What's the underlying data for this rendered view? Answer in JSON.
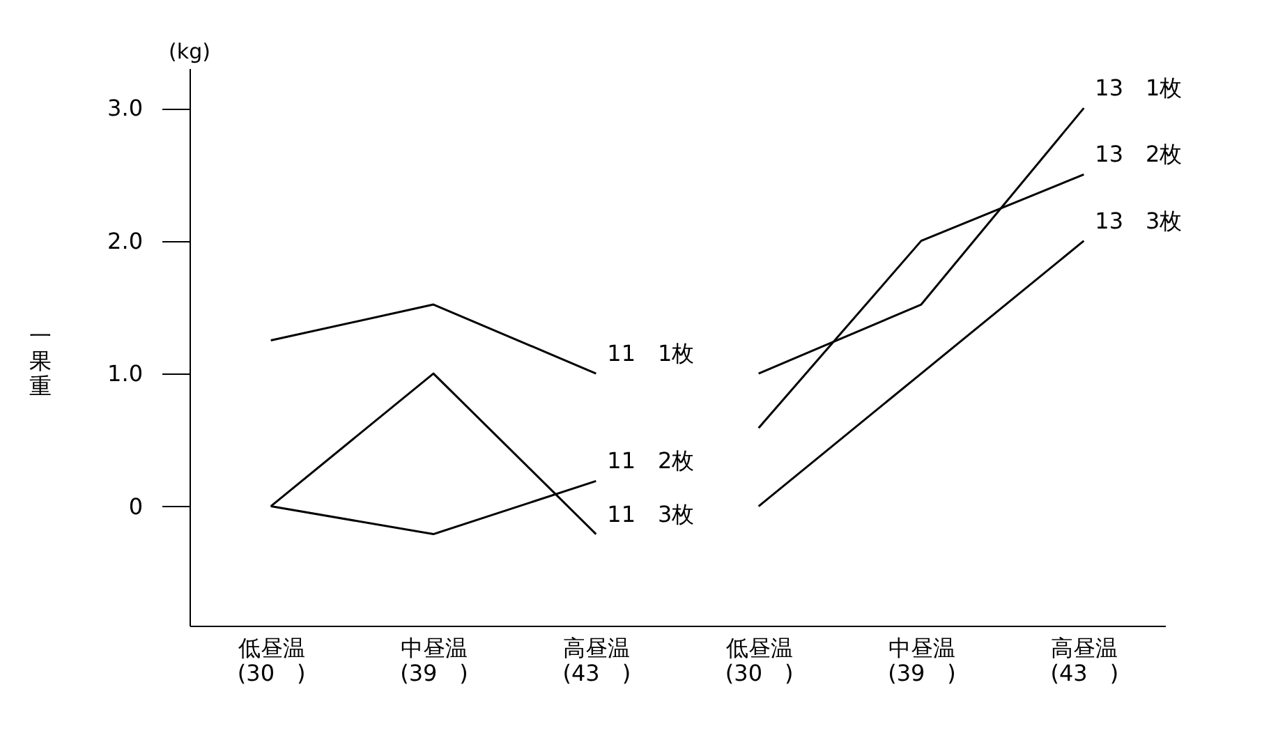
{
  "chart_data": {
    "type": "line",
    "ylabel": "一果重",
    "annotations": [
      "(kg)"
    ],
    "categories": [
      "低昼温\n(30　)",
      "中昼温\n(39　)",
      "高昼温\n(43　)",
      "低昼温\n(30　)",
      "中昼温\n(39　)",
      "高昼温\n(43　)"
    ],
    "series": [
      {
        "name": "11　1枚",
        "color": "#000000",
        "values": [
          1.25,
          1.52,
          1.0,
          null,
          null,
          null
        ]
      },
      {
        "name": "11　2枚",
        "color": "#000000",
        "values": [
          0,
          -0.21,
          0.19,
          null,
          null,
          null
        ]
      },
      {
        "name": "11　3枚",
        "color": "#000000",
        "values": [
          0,
          1.0,
          -0.21,
          null,
          null,
          null
        ]
      },
      {
        "name": "13　1枚",
        "color": "#000000",
        "values": [
          null,
          null,
          null,
          1.0,
          1.52,
          3.0
        ]
      },
      {
        "name": "13　2枚",
        "color": "#000000",
        "values": [
          null,
          null,
          null,
          0.59,
          2.0,
          2.5
        ]
      },
      {
        "name": "13　3枚",
        "color": "#000000",
        "values": [
          null,
          null,
          null,
          0,
          1.0,
          2.0
        ]
      }
    ],
    "ylim": [
      -0.9,
      3.3
    ],
    "yticks": [
      {
        "value": 0,
        "label": "0"
      },
      {
        "value": 1,
        "label": "1.0"
      },
      {
        "value": 2,
        "label": "2.0"
      },
      {
        "value": 3,
        "label": "3.0"
      }
    ],
    "grid": false,
    "legend": false,
    "marker": "none",
    "line_style": "solid"
  }
}
